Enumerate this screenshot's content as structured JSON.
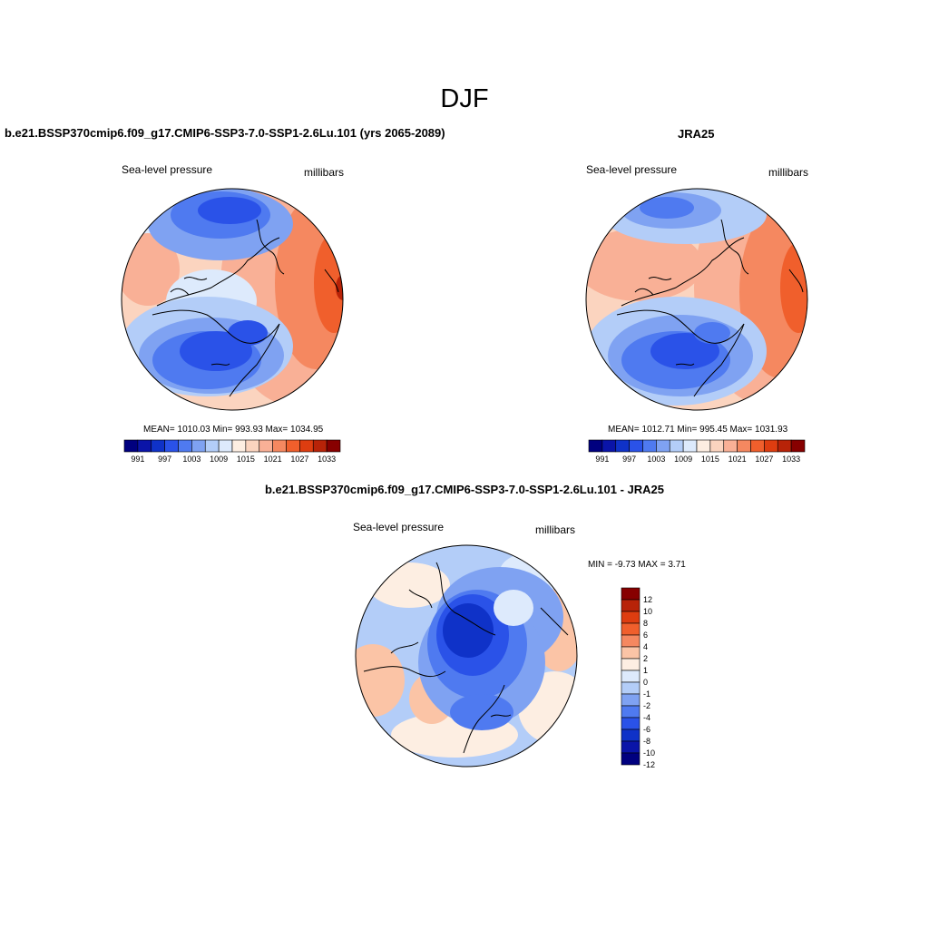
{
  "title": "DJF",
  "colors": {
    "full": [
      "#00007f",
      "#0a14a8",
      "#0f32c8",
      "#2a52e8",
      "#4f7af0",
      "#7fa2f2",
      "#b3cdf8",
      "#ddeafc",
      "#fdeee2",
      "#fbd4bf",
      "#f9b096",
      "#f58860",
      "#f05f2c",
      "#de3d10",
      "#b82308",
      "#870000"
    ],
    "diff": [
      "#00007f",
      "#0a14a8",
      "#0f32c8",
      "#2a52e8",
      "#4f7af0",
      "#7fa2f2",
      "#b3cdf8",
      "#ddeafc",
      "#fdeee2",
      "#fbc4a6",
      "#f58860",
      "#f05f2c",
      "#de3d10",
      "#b82308",
      "#870000"
    ]
  },
  "panels": [
    {
      "title": "b.e21.BSSP370cmip6.f09_g17.CMIP6-SSP3-7.0-SSP1-2.6Lu.101 (yrs 2065-2089)",
      "variable": "Sea-level pressure",
      "units": "millibars",
      "stats": "MEAN= 1010.03   Min= 993.93   Max= 1034.95",
      "colorbar_ticks": [
        "991",
        "997",
        "1003",
        "1009",
        "1015",
        "1021",
        "1027",
        "1033"
      ]
    },
    {
      "title": "JRA25",
      "variable": "Sea-level pressure",
      "units": "millibars",
      "stats": "MEAN= 1012.71   Min= 995.45   Max= 1031.93",
      "colorbar_ticks": [
        "991",
        "997",
        "1003",
        "1009",
        "1015",
        "1021",
        "1027",
        "1033"
      ]
    },
    {
      "title": "b.e21.BSSP370cmip6.f09_g17.CMIP6-SSP3-7.0-SSP1-2.6Lu.101 - JRA25",
      "variable": "Sea-level pressure",
      "units": "millibars",
      "stats": "MIN =  -9.73 MAX =   3.71",
      "colorbar_ticks": [
        "12",
        "10",
        "8",
        "6",
        "4",
        "2",
        "1",
        "0",
        "-1",
        "-2",
        "-4",
        "-6",
        "-8",
        "-10",
        "-12"
      ]
    }
  ]
}
